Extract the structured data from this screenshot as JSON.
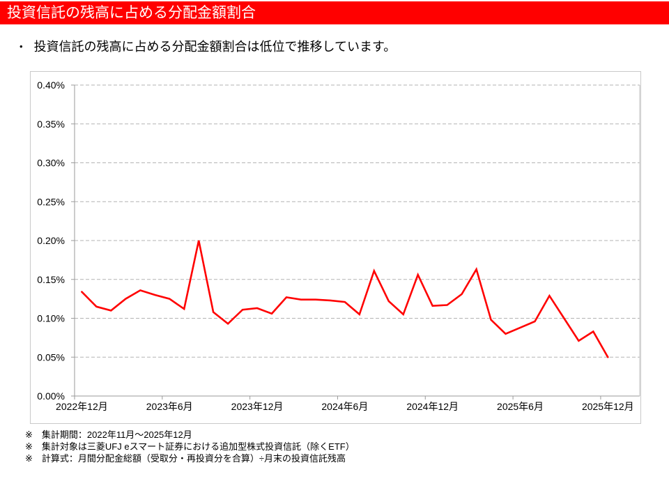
{
  "page": {
    "title": "投資信託の残高に占める分配金額割合",
    "bullet": "投資信託の残高に占める分配金額割合は低位で推移しています。",
    "bullet_glyph": "•"
  },
  "colors": {
    "banner_red": "#ff0000",
    "line_red": "#ff0000",
    "gridline": "#b3b3b3",
    "axis": "#9a9a9a",
    "plot_right_border": "#bdbdbd",
    "chart_border": "#c9c9c9",
    "title_text": "#ffffff",
    "body_text": "#000000"
  },
  "footnotes": [
    "※　集計期間：2022年11月～2025年12月",
    "※　集計対象は三菱UFJ eスマート証券における追加型株式投資信託（除くETF）",
    "※　計算式：月間分配金総額（受取分・再投資分を合算）÷月末の投資信託残高"
  ],
  "chart_data": {
    "type": "line",
    "title": "",
    "xlabel": "",
    "ylabel": "",
    "y_unit": "%",
    "ylim": [
      0.0,
      0.4
    ],
    "y_tick_step": 0.05,
    "y_ticks": [
      "0.00%",
      "0.05%",
      "0.10%",
      "0.15%",
      "0.20%",
      "0.25%",
      "0.30%",
      "0.35%",
      "0.40%"
    ],
    "grid": "horizontal-dashed",
    "legend": "none",
    "x_tick_labels": [
      "2022年12月",
      "2023年6月",
      "2023年12月",
      "2024年6月",
      "2024年12月",
      "2025年6月",
      "2025年12月"
    ],
    "x_tick_every": 6,
    "x": [
      "2022年12月",
      "2023年1月",
      "2023年2月",
      "2023年3月",
      "2023年4月",
      "2023年5月",
      "2023年6月",
      "2023年7月",
      "2023年8月",
      "2023年9月",
      "2023年10月",
      "2023年11月",
      "2023年12月",
      "2024年1月",
      "2024年2月",
      "2024年3月",
      "2024年4月",
      "2024年5月",
      "2024年6月",
      "2024年7月",
      "2024年8月",
      "2024年9月",
      "2024年10月",
      "2024年11月",
      "2024年12月",
      "2025年1月",
      "2025年2月",
      "2025年3月",
      "2025年4月",
      "2025年5月",
      "2025年6月",
      "2025年7月",
      "2025年8月",
      "2025年9月",
      "2025年10月",
      "2025年11月",
      "2025年12月"
    ],
    "series": [
      {
        "name": "投資信託の残高に占める分配金額割合",
        "color": "#ff0000",
        "values": [
          0.134,
          0.115,
          0.11,
          0.125,
          0.136,
          0.13,
          0.125,
          0.112,
          0.2,
          0.108,
          0.093,
          0.111,
          0.113,
          0.106,
          0.127,
          0.124,
          0.124,
          0.123,
          0.121,
          0.105,
          0.161,
          0.122,
          0.105,
          0.156,
          0.116,
          0.117,
          0.131,
          0.163,
          0.098,
          0.08,
          0.088,
          0.096,
          0.129,
          0.1,
          0.071,
          0.083,
          0.05
        ]
      }
    ]
  }
}
